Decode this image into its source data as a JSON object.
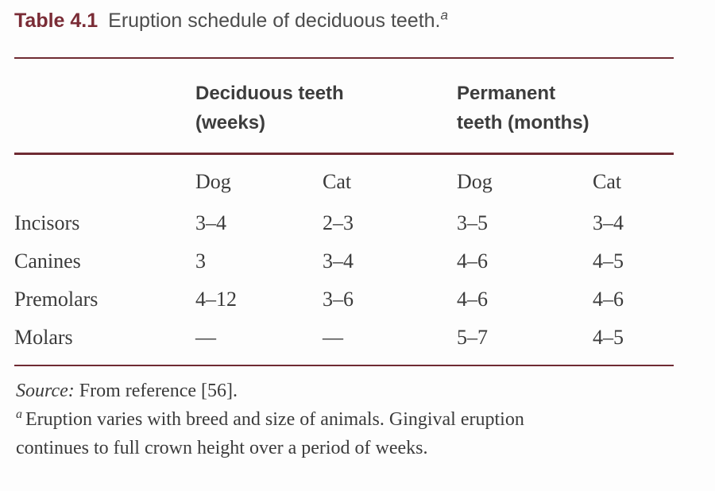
{
  "title": {
    "label": "Table 4.1",
    "text": "Eruption schedule of deciduous teeth.",
    "footnote_marker": "a"
  },
  "table": {
    "group_headers": [
      {
        "lines": [
          "Deciduous teeth",
          "(weeks)"
        ]
      },
      {
        "lines": [
          "Permanent",
          "teeth (months)"
        ]
      }
    ],
    "column_headers": [
      "Dog",
      "Cat",
      "Dog",
      "Cat"
    ],
    "rows": [
      {
        "label": "Incisors",
        "values": [
          "3–4",
          "2–3",
          "3–5",
          "3–4"
        ]
      },
      {
        "label": "Canines",
        "values": [
          "3",
          "3–4",
          "4–6",
          "4–5"
        ]
      },
      {
        "label": "Premolars",
        "values": [
          "4–12",
          "3–6",
          "4–6",
          "4–6"
        ]
      },
      {
        "label": "Molars",
        "values": [
          "—",
          "—",
          "5–7",
          "4–5"
        ]
      }
    ]
  },
  "footer": {
    "source_label": "Source:",
    "source_text": "From reference [56].",
    "footnote_marker": "a",
    "footnote_lines": [
      "Eruption varies with breed and size of animals. Gingival eruption",
      "continues to full crown height over a period of weeks."
    ]
  },
  "colors": {
    "rule_maroon": "#6f2b33",
    "title_maroon": "#7a2c36",
    "text_gray": "#3b3b3b"
  }
}
